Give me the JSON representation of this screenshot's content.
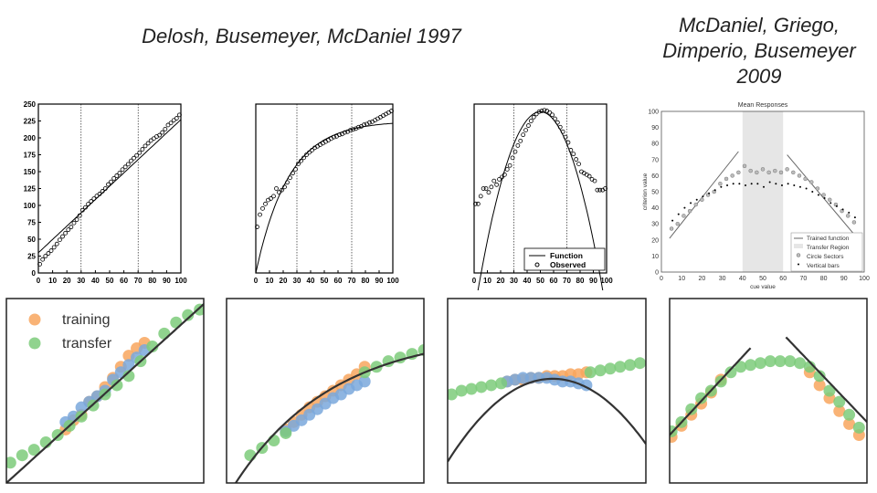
{
  "titles": {
    "left": "Delosh, Busemeyer, McDaniel 1997",
    "right_lines": [
      "McDaniel, Griego,",
      "Dimperio, Busemeyer",
      "2009"
    ]
  },
  "chart_data": [
    {
      "type": "scatter",
      "panel": "delosh-linear",
      "xlim": [
        0,
        100
      ],
      "ylim": [
        0,
        250
      ],
      "xticks": [
        0,
        10,
        20,
        30,
        40,
        50,
        60,
        70,
        80,
        90,
        100
      ],
      "yticks": [
        0,
        25,
        50,
        75,
        100,
        125,
        150,
        175,
        200,
        225,
        250
      ],
      "training_region": [
        30,
        70
      ],
      "function": "linear",
      "series": [
        {
          "name": "",
          "x": [
            1,
            3,
            5,
            7,
            9,
            11,
            13,
            15,
            17,
            19,
            21,
            23,
            25,
            27,
            29,
            31,
            33,
            35,
            37,
            39,
            41,
            43,
            45,
            47,
            49,
            51,
            53,
            55,
            57,
            59,
            61,
            63,
            65,
            67,
            69,
            71,
            73,
            75,
            77,
            79,
            81,
            83,
            85,
            87,
            89,
            91,
            93,
            95,
            97,
            99
          ],
          "y": [
            13,
            20,
            25,
            29,
            33,
            38,
            43,
            49,
            54,
            59,
            64,
            68,
            74,
            79,
            85,
            93,
            97,
            102,
            106,
            110,
            114,
            117,
            121,
            125,
            131,
            135,
            140,
            144,
            148,
            153,
            157,
            161,
            166,
            170,
            174,
            178,
            183,
            188,
            192,
            196,
            199,
            202,
            204,
            208,
            213,
            219,
            222,
            226,
            229,
            234
          ]
        }
      ]
    },
    {
      "type": "scatter",
      "panel": "delosh-exponential",
      "xlim": [
        0,
        100
      ],
      "ylim": [
        0,
        220
      ],
      "xticks": [
        0,
        10,
        20,
        30,
        40,
        50,
        60,
        70,
        80,
        90,
        100
      ],
      "training_region": [
        30,
        70
      ],
      "function": "exponential",
      "series": [
        {
          "name": "",
          "x": [
            1,
            3,
            5,
            7,
            9,
            11,
            13,
            15,
            17,
            19,
            21,
            23,
            25,
            27,
            29,
            31,
            33,
            35,
            37,
            39,
            41,
            43,
            45,
            47,
            49,
            51,
            53,
            55,
            57,
            59,
            61,
            63,
            65,
            67,
            69,
            71,
            73,
            75,
            77,
            79,
            81,
            83,
            85,
            87,
            89,
            91,
            93,
            95,
            97,
            99
          ],
          "y": [
            60,
            76,
            84,
            90,
            95,
            97,
            100,
            110,
            105,
            108,
            112,
            118,
            124,
            130,
            135,
            142,
            146,
            150,
            154,
            157,
            160,
            163,
            165,
            167,
            169,
            171,
            173,
            175,
            177,
            178,
            180,
            181,
            183,
            184,
            186,
            187,
            188,
            190,
            191,
            193,
            194,
            196,
            197,
            199,
            201,
            203,
            205,
            207,
            209,
            211
          ]
        }
      ]
    },
    {
      "type": "scatter",
      "panel": "delosh-quadratic",
      "xlim": [
        0,
        100
      ],
      "ylim": [
        0,
        220
      ],
      "xticks": [
        0,
        10,
        20,
        30,
        40,
        50,
        60,
        70,
        80,
        90,
        100
      ],
      "training_region": [
        30,
        70
      ],
      "function": "quadratic",
      "legend": {
        "entries": [
          "Function",
          "Observed"
        ],
        "position": "bottom-right"
      },
      "series": [
        {
          "name": "Observed",
          "x": [
            1,
            3,
            5,
            7,
            9,
            11,
            13,
            15,
            17,
            19,
            21,
            23,
            25,
            27,
            29,
            31,
            33,
            35,
            37,
            39,
            41,
            43,
            45,
            47,
            49,
            51,
            53,
            55,
            57,
            59,
            61,
            63,
            65,
            67,
            69,
            71,
            73,
            75,
            77,
            79,
            81,
            83,
            85,
            87,
            89,
            91,
            93,
            95,
            97,
            99
          ],
          "y": [
            90,
            90,
            100,
            110,
            110,
            105,
            112,
            120,
            115,
            122,
            125,
            128,
            135,
            140,
            150,
            158,
            166,
            172,
            180,
            186,
            192,
            198,
            203,
            207,
            210,
            211,
            212,
            211,
            209,
            206,
            201,
            196,
            190,
            184,
            177,
            170,
            160,
            155,
            148,
            142,
            132,
            130,
            128,
            126,
            122,
            120,
            108,
            108,
            108,
            110
          ]
        }
      ]
    },
    {
      "type": "scatter",
      "panel": "mcdaniel-mean-responses",
      "title": "Mean Responses",
      "xlabel": "cue value",
      "ylabel": "criterion value",
      "xlim": [
        0,
        100
      ],
      "ylim": [
        0,
        100
      ],
      "xticks": [
        0,
        10,
        20,
        30,
        40,
        50,
        60,
        70,
        80,
        90,
        100
      ],
      "yticks": [
        0,
        10,
        20,
        30,
        40,
        50,
        60,
        70,
        80,
        90,
        100
      ],
      "transfer_region": [
        40,
        60
      ],
      "legend": {
        "entries": [
          "Trained function",
          "Transfer Region",
          "Circle Sectors",
          "Vertical bars"
        ],
        "position": "bottom-right"
      },
      "series": [
        {
          "name": "Circle Sectors",
          "x": [
            5,
            8,
            11,
            14,
            17,
            20,
            23,
            26,
            29,
            32,
            35,
            38,
            41,
            44,
            47,
            50,
            53,
            56,
            59,
            62,
            65,
            68,
            71,
            74,
            77,
            80,
            83,
            86,
            89,
            92,
            95
          ],
          "y": [
            27,
            30,
            35,
            38,
            42,
            45,
            48,
            50,
            55,
            58,
            60,
            62,
            66,
            63,
            62,
            64,
            62,
            63,
            62,
            64,
            62,
            60,
            58,
            56,
            52,
            48,
            45,
            42,
            38,
            35,
            31
          ]
        },
        {
          "name": "Vertical bars",
          "x": [
            5,
            8,
            11,
            14,
            17,
            20,
            23,
            26,
            29,
            32,
            35,
            38,
            41,
            44,
            47,
            50,
            53,
            56,
            59,
            62,
            65,
            68,
            71,
            74,
            77,
            80,
            83,
            86,
            89,
            92,
            95
          ],
          "y": [
            32,
            36,
            40,
            43,
            45,
            47,
            49,
            51,
            53,
            54,
            55,
            55,
            54,
            55,
            55,
            53,
            56,
            55,
            54,
            55,
            54,
            53,
            52,
            50,
            48,
            46,
            43,
            41,
            39,
            37,
            34
          ]
        }
      ]
    },
    {
      "type": "scatter",
      "panel": "model-linear",
      "legend": {
        "entries": [
          "training",
          "transfer"
        ],
        "position": "top-left"
      },
      "colors": {
        "training": "#f8a65e",
        "transfer": "#7ccb7a",
        "test": "#7aa8dc",
        "function": "#333333"
      },
      "series": [
        {
          "name": "transfer",
          "x": [
            0.02,
            0.08,
            0.14,
            0.2,
            0.26,
            0.32,
            0.38,
            0.44,
            0.5,
            0.56,
            0.62,
            0.68,
            0.74,
            0.8,
            0.86,
            0.92,
            0.98
          ],
          "y": [
            0.11,
            0.15,
            0.18,
            0.22,
            0.26,
            0.31,
            0.36,
            0.42,
            0.48,
            0.53,
            0.58,
            0.66,
            0.74,
            0.81,
            0.87,
            0.91,
            0.94
          ]
        },
        {
          "name": "training",
          "x": [
            0.3,
            0.34,
            0.38,
            0.42,
            0.46,
            0.5,
            0.54,
            0.58,
            0.62,
            0.66,
            0.7
          ],
          "y": [
            0.29,
            0.34,
            0.37,
            0.44,
            0.47,
            0.52,
            0.57,
            0.63,
            0.69,
            0.73,
            0.76
          ]
        },
        {
          "name": "",
          "x": [
            0.3,
            0.34,
            0.38,
            0.42,
            0.46,
            0.5,
            0.54,
            0.58,
            0.62,
            0.66,
            0.7
          ],
          "y": [
            0.33,
            0.36,
            0.41,
            0.44,
            0.47,
            0.5,
            0.56,
            0.6,
            0.64,
            0.68,
            0.72
          ]
        }
      ]
    },
    {
      "type": "scatter",
      "panel": "model-exponential",
      "colors": {
        "training": "#f8a65e",
        "transfer": "#7ccb7a",
        "test": "#7aa8dc",
        "function": "#333333"
      },
      "series": [
        {
          "name": "transfer",
          "x": [
            0.12,
            0.18,
            0.24,
            0.3,
            0.7,
            0.76,
            0.82,
            0.88,
            0.94,
            1.0
          ],
          "y": [
            0.15,
            0.19,
            0.23,
            0.27,
            0.6,
            0.63,
            0.66,
            0.68,
            0.7,
            0.72
          ]
        },
        {
          "name": "training",
          "x": [
            0.3,
            0.34,
            0.38,
            0.42,
            0.46,
            0.5,
            0.54,
            0.58,
            0.62,
            0.66,
            0.7
          ],
          "y": [
            0.29,
            0.33,
            0.37,
            0.41,
            0.44,
            0.47,
            0.5,
            0.53,
            0.56,
            0.59,
            0.63
          ]
        },
        {
          "name": "",
          "x": [
            0.3,
            0.34,
            0.38,
            0.42,
            0.46,
            0.5,
            0.54,
            0.58,
            0.62,
            0.66,
            0.7
          ],
          "y": [
            0.28,
            0.31,
            0.34,
            0.37,
            0.4,
            0.43,
            0.46,
            0.48,
            0.51,
            0.53,
            0.55
          ]
        }
      ]
    },
    {
      "type": "scatter",
      "panel": "model-quadratic",
      "colors": {
        "training": "#f8a65e",
        "transfer": "#7ccb7a",
        "test": "#7aa8dc",
        "function": "#333333"
      },
      "series": [
        {
          "name": "transfer",
          "x": [
            0.02,
            0.07,
            0.12,
            0.17,
            0.22,
            0.27,
            0.72,
            0.77,
            0.82,
            0.87,
            0.92,
            0.97
          ],
          "y": [
            0.48,
            0.5,
            0.51,
            0.52,
            0.53,
            0.54,
            0.6,
            0.61,
            0.62,
            0.63,
            0.64,
            0.65
          ]
        },
        {
          "name": "training",
          "x": [
            0.3,
            0.34,
            0.38,
            0.42,
            0.46,
            0.5,
            0.54,
            0.58,
            0.62,
            0.66,
            0.7
          ],
          "y": [
            0.55,
            0.56,
            0.56,
            0.57,
            0.57,
            0.58,
            0.58,
            0.58,
            0.59,
            0.59,
            0.6
          ]
        },
        {
          "name": "",
          "x": [
            0.3,
            0.34,
            0.38,
            0.42,
            0.46,
            0.5,
            0.54,
            0.58,
            0.62,
            0.66,
            0.7
          ],
          "y": [
            0.55,
            0.56,
            0.57,
            0.57,
            0.57,
            0.57,
            0.56,
            0.55,
            0.55,
            0.54,
            0.53
          ]
        }
      ]
    },
    {
      "type": "scatter",
      "panel": "model-vshape",
      "colors": {
        "training": "#f8a65e",
        "transfer": "#7ccb7a",
        "test": "#7aa8dc",
        "function": "#333333"
      },
      "series": [
        {
          "name": "transfer",
          "x": [
            0.01,
            0.06,
            0.11,
            0.16,
            0.21,
            0.26,
            0.31,
            0.36,
            0.41,
            0.46,
            0.51,
            0.56,
            0.61,
            0.66,
            0.71,
            0.76,
            0.81,
            0.86,
            0.91,
            0.96
          ],
          "y": [
            0.28,
            0.33,
            0.4,
            0.46,
            0.5,
            0.55,
            0.6,
            0.63,
            0.64,
            0.65,
            0.66,
            0.66,
            0.66,
            0.65,
            0.63,
            0.58,
            0.5,
            0.44,
            0.37,
            0.3
          ]
        },
        {
          "name": "training",
          "x": [
            0.01,
            0.06,
            0.11,
            0.16,
            0.21,
            0.26,
            0.71,
            0.76,
            0.81,
            0.86,
            0.91,
            0.96
          ],
          "y": [
            0.25,
            0.31,
            0.37,
            0.43,
            0.49,
            0.56,
            0.6,
            0.53,
            0.46,
            0.39,
            0.32,
            0.26
          ]
        }
      ]
    }
  ]
}
